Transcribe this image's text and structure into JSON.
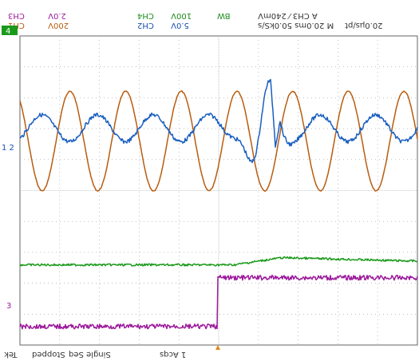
{
  "header": {
    "ch3_label": "CH3",
    "ch3_scale": "2.0V",
    "ch4_label": "CH4",
    "ch4_scale": "100V",
    "bw_label": "BW",
    "trigger": "A  CH3  ⁄  240mV",
    "ch1_label": "CH1",
    "ch1_scale": "200V",
    "ch2_label": "CH2",
    "ch2_scale": "5.0V",
    "timebase": "M 20.0ms 50.0kS/s",
    "per_div": "20.0µs/pt"
  },
  "status": {
    "brand": "Tek",
    "state": "Stopped",
    "mode": "Single Seq",
    "acqs": "1 Acqs"
  },
  "markers": {
    "ch4": "4",
    "ch12": "1 2",
    "ch3": "3"
  },
  "colors": {
    "ch1": "#b85c10",
    "ch2": "#1a5fbf",
    "ch3": "#1a9a1a",
    "ch4": "#9c1a9c",
    "grid": "#999999",
    "header_green": "#1a8a1a",
    "header_blue": "#1a4fb0"
  },
  "chart_data": {
    "type": "line",
    "series": [
      {
        "color": "#b85c10",
        "signal": "sine",
        "period_divisions": 1.4,
        "amplitude_divisions": 1.75,
        "baseline_divisions_from_top": 3.4
      },
      {
        "color": "#1a5fbf",
        "signal": "sine with transient disturbance near trigger",
        "period_divisions": 1.4,
        "amplitude_divisions": 0.7,
        "baseline_divisions_from_top": 3.4
      },
      {
        "color": "#1a9a1a",
        "signal": "flat level with slow rise after trigger",
        "baseline_divisions_from_top": 7.2
      },
      {
        "color": "#9c1a9c",
        "signal": "step up at trigger point",
        "low_divisions_from_top": 9.4,
        "high_divisions_from_top": 7.9
      }
    ],
    "grid": true,
    "divisions_x": 10,
    "divisions_y": 10
  }
}
